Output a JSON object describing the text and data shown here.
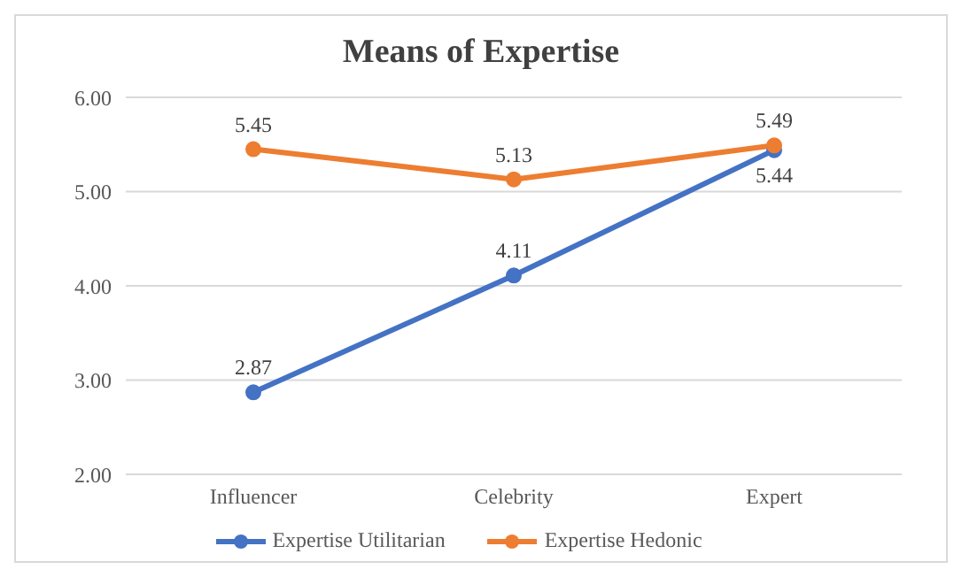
{
  "chart_data": {
    "type": "line",
    "title": "Means of Expertise",
    "categories": [
      "Influencer",
      "Celebrity",
      "Expert"
    ],
    "series": [
      {
        "name": "Expertise Utilitarian",
        "color": "#4472c4",
        "values": [
          2.87,
          4.11,
          5.44
        ]
      },
      {
        "name": "Expertise Hedonic",
        "color": "#ed7d31",
        "values": [
          5.45,
          5.13,
          5.49
        ]
      }
    ],
    "ylim": [
      2,
      6
    ],
    "yticks": [
      {
        "value": 2,
        "label": "2.00"
      },
      {
        "value": 3,
        "label": "3.00"
      },
      {
        "value": 4,
        "label": "4.00"
      },
      {
        "value": 5,
        "label": "5.00"
      },
      {
        "value": 6,
        "label": "6.00"
      }
    ],
    "grid": "y",
    "legend": "bottom",
    "marker": "circle",
    "line_style": "solid",
    "data_labels": true
  }
}
